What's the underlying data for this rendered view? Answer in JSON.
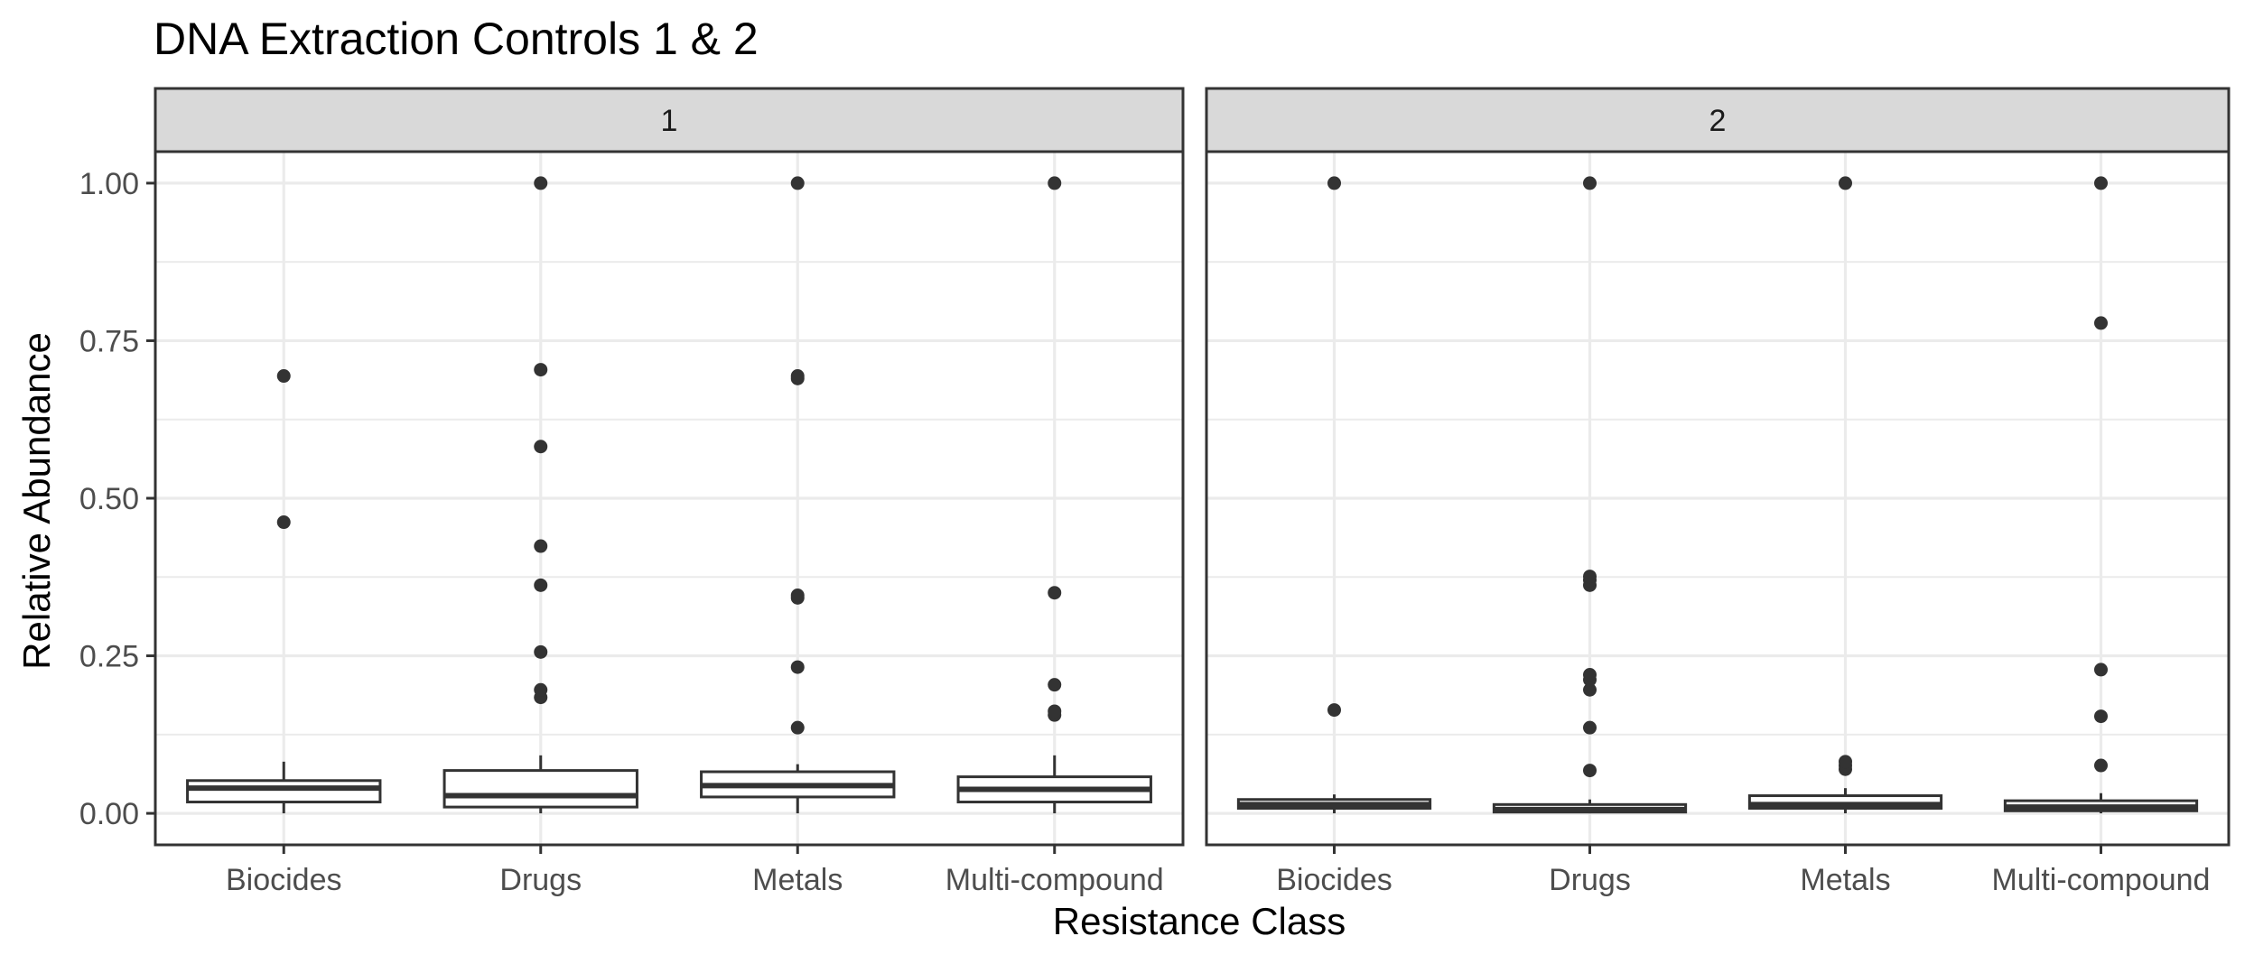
{
  "chart_data": {
    "type": "boxplot",
    "title": "DNA Extraction Controls 1 & 2",
    "xlabel": "Resistance Class",
    "ylabel": "Relative Abundance",
    "ylim": [
      -0.05,
      1.05
    ],
    "yticks": [
      0.0,
      0.25,
      0.5,
      0.75,
      1.0
    ],
    "ytick_labels": [
      "0.00",
      "0.25",
      "0.50",
      "0.75",
      "1.00"
    ],
    "categories": [
      "Biocides",
      "Drugs",
      "Metals",
      "Multi-compound"
    ],
    "grid": true,
    "colors": {
      "box_fill": "#ffffff",
      "box_line": "#333333",
      "point": "#333333",
      "strip_bg": "#d9d9d9",
      "grid": "#ebebeb"
    },
    "facets": [
      {
        "label": "1",
        "boxes": [
          {
            "category": "Biocides",
            "lower_whisker": 0.0,
            "q1": 0.018,
            "median": 0.04,
            "q3": 0.052,
            "upper_whisker": 0.082,
            "outliers": [
              0.462,
              0.694
            ]
          },
          {
            "category": "Drugs",
            "lower_whisker": 0.0,
            "q1": 0.01,
            "median": 0.028,
            "q3": 0.068,
            "upper_whisker": 0.092,
            "outliers": [
              0.184,
              0.196,
              0.256,
              0.362,
              0.424,
              0.582,
              0.704,
              1.0
            ]
          },
          {
            "category": "Metals",
            "lower_whisker": 0.0,
            "q1": 0.026,
            "median": 0.044,
            "q3": 0.066,
            "upper_whisker": 0.078,
            "outliers": [
              0.136,
              0.232,
              0.342,
              0.346,
              0.69,
              0.694,
              1.0
            ]
          },
          {
            "category": "Multi-compound",
            "lower_whisker": 0.0,
            "q1": 0.018,
            "median": 0.038,
            "q3": 0.058,
            "upper_whisker": 0.092,
            "outliers": [
              0.156,
              0.162,
              0.204,
              0.35,
              1.0
            ]
          }
        ]
      },
      {
        "label": "2",
        "boxes": [
          {
            "category": "Biocides",
            "lower_whisker": 0.0,
            "q1": 0.008,
            "median": 0.014,
            "q3": 0.022,
            "upper_whisker": 0.03,
            "outliers": [
              0.164,
              1.0
            ]
          },
          {
            "category": "Drugs",
            "lower_whisker": 0.0,
            "q1": 0.002,
            "median": 0.006,
            "q3": 0.014,
            "upper_whisker": 0.022,
            "outliers": [
              0.068,
              0.136,
              0.196,
              0.212,
              0.22,
              0.362,
              0.37,
              0.376,
              1.0
            ]
          },
          {
            "category": "Metals",
            "lower_whisker": 0.0,
            "q1": 0.008,
            "median": 0.014,
            "q3": 0.028,
            "upper_whisker": 0.04,
            "outliers": [
              0.07,
              0.076,
              0.082,
              1.0
            ]
          },
          {
            "category": "Multi-compound",
            "lower_whisker": 0.0,
            "q1": 0.004,
            "median": 0.01,
            "q3": 0.02,
            "upper_whisker": 0.032,
            "outliers": [
              0.076,
              0.154,
              0.228,
              0.778,
              1.0
            ]
          }
        ]
      }
    ]
  }
}
